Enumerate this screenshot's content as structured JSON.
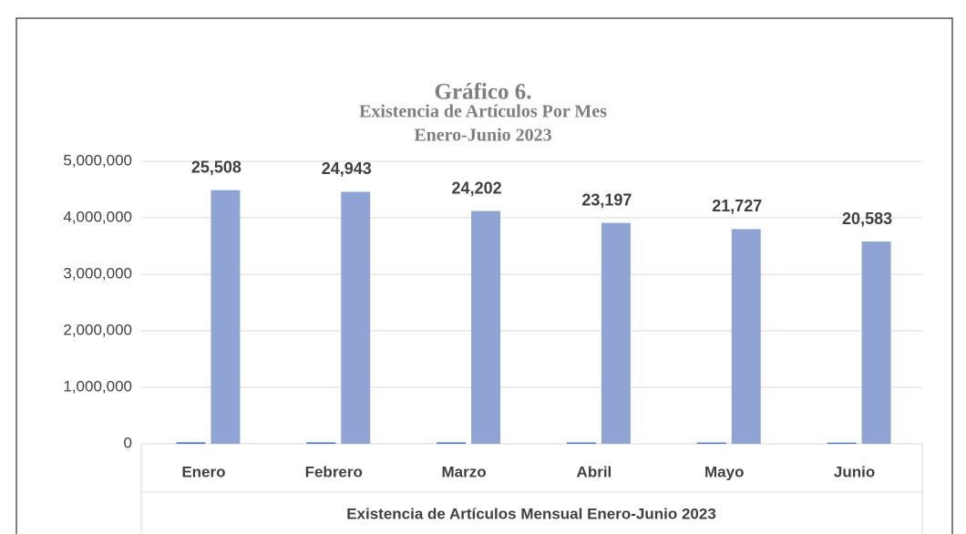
{
  "chart_data": {
    "type": "bar",
    "title": "Gráfico 6.",
    "subtitle": [
      "Existencia de Artículos Por Mes",
      "Enero-Junio 2023"
    ],
    "categories": [
      "Enero",
      "Febrero",
      "Marzo",
      "Abril",
      "Mayo",
      "Junio"
    ],
    "series": [
      {
        "color": "#4472c4",
        "values": [
          25508,
          24943,
          24202,
          23197,
          21727,
          20583
        ],
        "value_labels": [
          "25,508",
          "24,943",
          "24,202",
          "23,197",
          "21,727",
          "20,583"
        ]
      },
      {
        "color": "#8fa3d4",
        "values": [
          4490000,
          4460000,
          4120000,
          3910000,
          3800000,
          3580000
        ]
      }
    ],
    "xlabel": "Existencia de Artículos Mensual Enero-Junio 2023",
    "ylim": [
      0,
      5000000
    ],
    "yticks": [
      0,
      {
        "value": 1000000,
        "label": "1,000,000"
      },
      {
        "value": 2000000,
        "label": "2,000,000"
      },
      {
        "value": 3000000,
        "label": "3,000,000"
      },
      {
        "value": 4000000,
        "label": "4,000,000"
      },
      {
        "value": 5000000,
        "label": "5,000,000"
      }
    ],
    "grid": true
  }
}
